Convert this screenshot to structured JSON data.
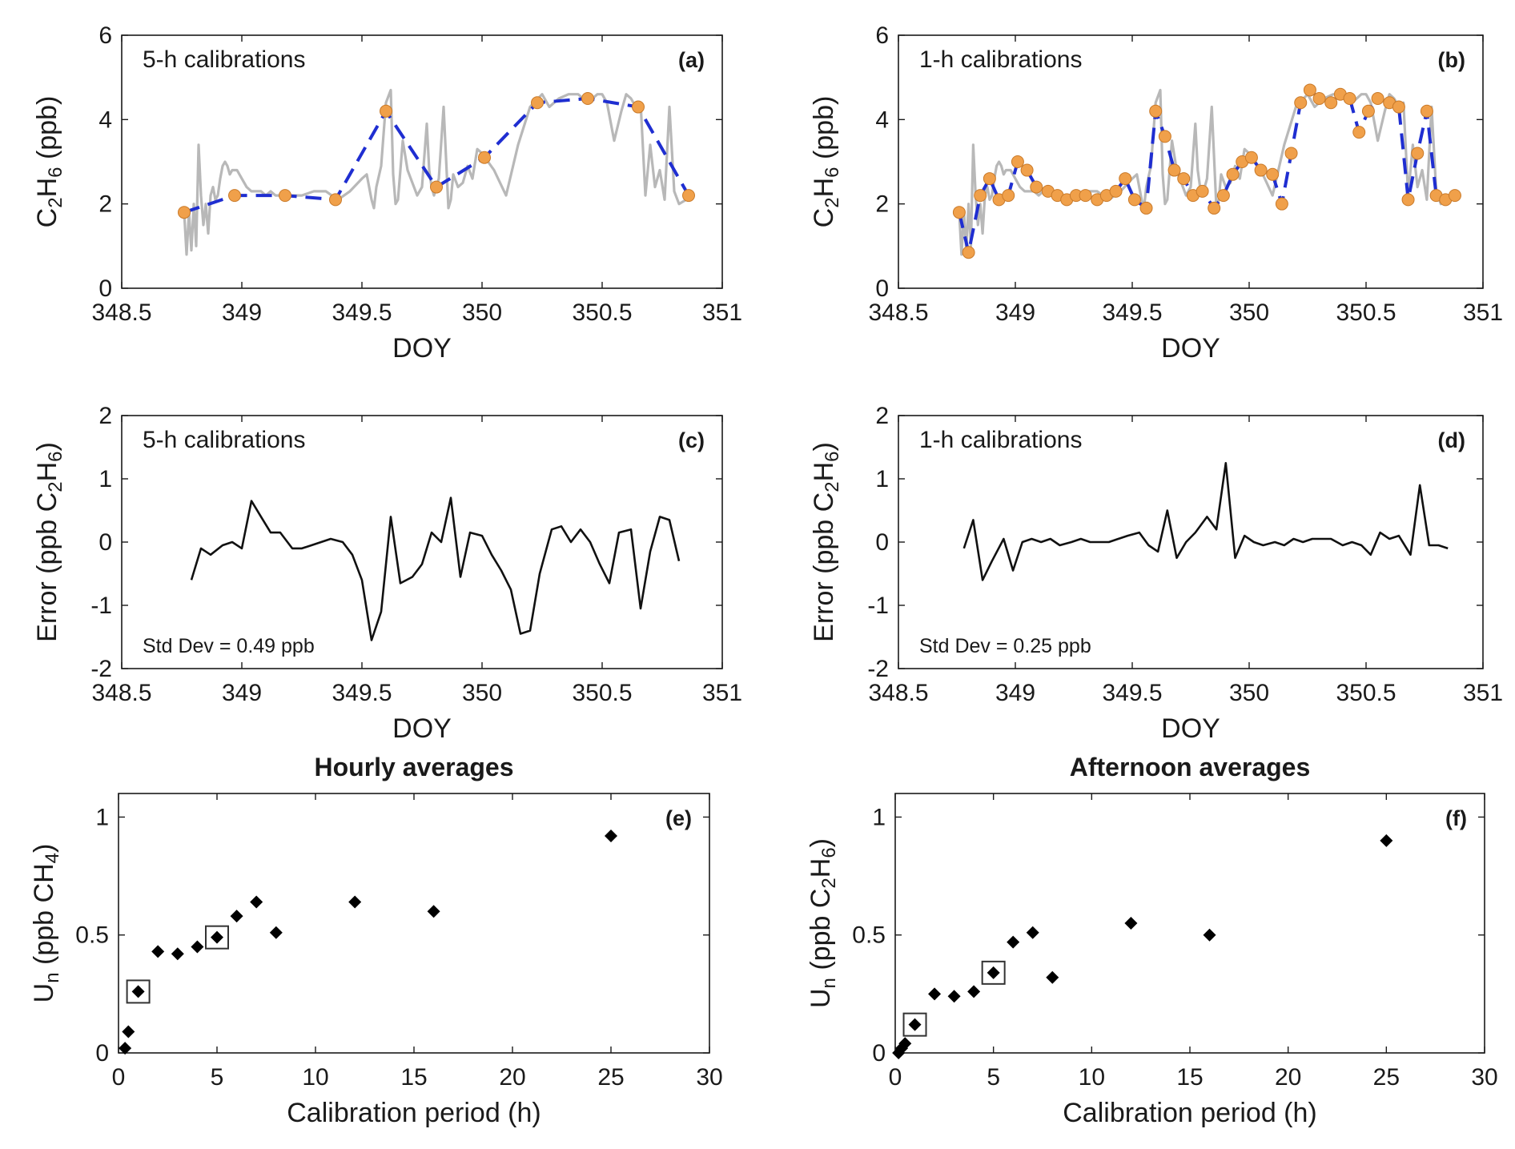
{
  "chart_data": [
    {
      "id": "a",
      "type": "line",
      "tag": "(a)",
      "note": "5-h calibrations",
      "xlabel": "DOY",
      "ylabel": [
        "C",
        "2",
        "H",
        "6",
        " (ppb)"
      ],
      "xlim": [
        348.5,
        351
      ],
      "ylim": [
        0,
        6
      ],
      "xticks": [
        348.5,
        349,
        349.5,
        350,
        350.5,
        351
      ],
      "xtick_labels": [
        "348.5",
        "349",
        "349.5",
        "350",
        "350.5",
        "351"
      ],
      "yticks": [
        0,
        2,
        4,
        6
      ],
      "ytick_labels": [
        "0",
        "2",
        "4",
        "6"
      ],
      "series": [
        {
          "style": "measured",
          "color": "#b8b8b8",
          "x": [
            348.76,
            348.77,
            348.78,
            348.79,
            348.8,
            348.81,
            348.82,
            348.83,
            348.84,
            348.85,
            348.86,
            348.87,
            348.88,
            348.89,
            348.9,
            348.91,
            348.92,
            348.93,
            348.94,
            348.95,
            348.96,
            348.98,
            349.0,
            349.02,
            349.04,
            349.06,
            349.08,
            349.1,
            349.12,
            349.14,
            349.16,
            349.2,
            349.25,
            349.3,
            349.35,
            349.4,
            349.45,
            349.5,
            349.52,
            349.54,
            349.55,
            349.56,
            349.58,
            349.6,
            349.62,
            349.63,
            349.64,
            349.65,
            349.67,
            349.69,
            349.71,
            349.73,
            349.75,
            349.77,
            349.78,
            349.79,
            349.8,
            349.81,
            349.82,
            349.84,
            349.86,
            349.87,
            349.88,
            349.9,
            349.92,
            349.94,
            349.96,
            349.98,
            350.0,
            350.05,
            350.1,
            350.15,
            350.2,
            350.25,
            350.28,
            350.32,
            350.36,
            350.4,
            350.44,
            350.48,
            350.5,
            350.52,
            350.55,
            350.58,
            350.6,
            350.62,
            350.64,
            350.66,
            350.68,
            350.7,
            350.72,
            350.74,
            350.76,
            350.78,
            350.8,
            350.82,
            350.85,
            350.88
          ],
          "y": [
            1.8,
            0.8,
            1.8,
            0.9,
            2.0,
            1.0,
            3.4,
            2.2,
            1.5,
            2.0,
            1.3,
            2.2,
            2.4,
            2.1,
            2.2,
            2.6,
            2.9,
            3.0,
            2.9,
            2.7,
            2.8,
            2.8,
            2.6,
            2.4,
            2.3,
            2.3,
            2.3,
            2.2,
            2.3,
            2.2,
            2.2,
            2.2,
            2.2,
            2.3,
            2.3,
            2.1,
            2.3,
            2.6,
            2.7,
            2.1,
            1.9,
            2.4,
            2.9,
            4.4,
            4.7,
            2.7,
            2.0,
            2.1,
            3.5,
            2.8,
            2.5,
            2.2,
            2.4,
            3.9,
            2.8,
            2.4,
            2.2,
            2.4,
            2.6,
            4.3,
            1.9,
            2.1,
            2.7,
            2.4,
            2.5,
            2.9,
            2.6,
            3.3,
            3.2,
            2.8,
            2.2,
            3.4,
            4.3,
            4.6,
            4.3,
            4.5,
            4.6,
            4.6,
            4.4,
            4.6,
            4.6,
            4.4,
            3.5,
            4.2,
            4.6,
            4.5,
            4.3,
            4.4,
            2.2,
            3.4,
            2.4,
            2.8,
            2.1,
            4.3,
            2.3,
            2.0,
            2.1,
            2.2
          ]
        },
        {
          "style": "calibrated",
          "color": "#1f2ed1",
          "marker_color": "#f0a04a",
          "x": [
            348.76,
            348.97,
            349.18,
            349.39,
            349.6,
            349.81,
            350.01,
            350.23,
            350.44,
            350.65,
            350.86
          ],
          "y": [
            1.8,
            2.2,
            2.2,
            2.1,
            4.2,
            2.4,
            3.1,
            4.4,
            4.5,
            4.3,
            2.2
          ]
        }
      ]
    },
    {
      "id": "b",
      "type": "line",
      "tag": "(b)",
      "note": "1-h calibrations",
      "xlabel": "DOY",
      "ylabel": [
        "C",
        "2",
        "H",
        "6",
        " (ppb)"
      ],
      "xlim": [
        348.5,
        351
      ],
      "ylim": [
        0,
        6
      ],
      "xticks": [
        348.5,
        349,
        349.5,
        350,
        350.5,
        351
      ],
      "xtick_labels": [
        "348.5",
        "349",
        "349.5",
        "350",
        "350.5",
        "351"
      ],
      "yticks": [
        0,
        2,
        4,
        6
      ],
      "ytick_labels": [
        "0",
        "2",
        "4",
        "6"
      ],
      "series": [
        {
          "style": "measured",
          "color": "#b8b8b8",
          "x": [
            348.76,
            348.77,
            348.78,
            348.79,
            348.8,
            348.81,
            348.82,
            348.83,
            348.84,
            348.85,
            348.86,
            348.87,
            348.88,
            348.89,
            348.9,
            348.91,
            348.92,
            348.93,
            348.94,
            348.95,
            348.96,
            348.98,
            349.0,
            349.02,
            349.04,
            349.06,
            349.08,
            349.1,
            349.12,
            349.14,
            349.16,
            349.2,
            349.25,
            349.3,
            349.35,
            349.4,
            349.45,
            349.5,
            349.52,
            349.54,
            349.55,
            349.56,
            349.58,
            349.6,
            349.62,
            349.63,
            349.64,
            349.65,
            349.67,
            349.69,
            349.71,
            349.73,
            349.75,
            349.77,
            349.78,
            349.79,
            349.8,
            349.81,
            349.82,
            349.84,
            349.86,
            349.87,
            349.88,
            349.9,
            349.92,
            349.94,
            349.96,
            349.98,
            350.0,
            350.05,
            350.1,
            350.15,
            350.2,
            350.25,
            350.28,
            350.32,
            350.36,
            350.4,
            350.44,
            350.48,
            350.5,
            350.52,
            350.55,
            350.58,
            350.6,
            350.62,
            350.64,
            350.66,
            350.68,
            350.7,
            350.72,
            350.74,
            350.76,
            350.78,
            350.8,
            350.82,
            350.85,
            350.88
          ],
          "y": [
            1.8,
            0.8,
            1.8,
            0.9,
            2.0,
            1.0,
            3.4,
            2.2,
            1.5,
            2.0,
            1.3,
            2.2,
            2.4,
            2.1,
            2.2,
            2.6,
            2.9,
            3.0,
            2.9,
            2.7,
            2.8,
            2.8,
            2.6,
            2.4,
            2.3,
            2.3,
            2.3,
            2.2,
            2.3,
            2.2,
            2.2,
            2.2,
            2.2,
            2.3,
            2.3,
            2.1,
            2.3,
            2.6,
            2.7,
            2.1,
            1.9,
            2.4,
            2.9,
            4.4,
            4.7,
            2.7,
            2.0,
            2.1,
            3.5,
            2.8,
            2.5,
            2.2,
            2.4,
            3.9,
            2.8,
            2.4,
            2.2,
            2.4,
            2.6,
            4.3,
            1.9,
            2.1,
            2.7,
            2.4,
            2.5,
            2.9,
            2.6,
            3.3,
            3.2,
            2.8,
            2.2,
            3.4,
            4.3,
            4.6,
            4.3,
            4.5,
            4.6,
            4.6,
            4.4,
            4.6,
            4.6,
            4.4,
            3.5,
            4.2,
            4.6,
            4.5,
            4.3,
            4.4,
            2.2,
            3.4,
            2.4,
            2.8,
            2.1,
            4.3,
            2.3,
            2.0,
            2.1,
            2.2
          ]
        },
        {
          "style": "calibrated",
          "color": "#1f2ed1",
          "marker_color": "#f0a04a",
          "x": [
            348.76,
            348.8,
            348.85,
            348.89,
            348.93,
            348.97,
            349.01,
            349.05,
            349.09,
            349.14,
            349.18,
            349.22,
            349.26,
            349.3,
            349.35,
            349.39,
            349.43,
            349.47,
            349.51,
            349.56,
            349.6,
            349.64,
            349.68,
            349.72,
            349.76,
            349.8,
            349.85,
            349.89,
            349.93,
            349.97,
            350.01,
            350.05,
            350.1,
            350.14,
            350.18,
            350.22,
            350.26,
            350.3,
            350.35,
            350.39,
            350.43,
            350.47,
            350.51,
            350.55,
            350.6,
            350.64,
            350.68,
            350.72,
            350.76,
            350.8,
            350.84,
            350.88
          ],
          "y": [
            1.8,
            0.85,
            2.2,
            2.6,
            2.1,
            2.2,
            3.0,
            2.8,
            2.4,
            2.3,
            2.2,
            2.1,
            2.2,
            2.2,
            2.1,
            2.2,
            2.3,
            2.6,
            2.1,
            1.9,
            4.2,
            3.6,
            2.8,
            2.6,
            2.2,
            2.3,
            1.9,
            2.2,
            2.7,
            3.0,
            3.1,
            2.8,
            2.7,
            2.0,
            3.2,
            4.4,
            4.7,
            4.5,
            4.4,
            4.6,
            4.5,
            3.7,
            4.2,
            4.5,
            4.4,
            4.3,
            2.1,
            3.2,
            4.2,
            2.2,
            2.1,
            2.2
          ]
        }
      ]
    },
    {
      "id": "c",
      "type": "line",
      "tag": "(c)",
      "note": "5-h calibrations",
      "std_note": "Std Dev = 0.49 ppb",
      "xlabel": "DOY",
      "ylabel": [
        "Error (ppb C",
        "2",
        "H",
        "6",
        ")"
      ],
      "xlim": [
        348.5,
        351
      ],
      "ylim": [
        -2,
        2
      ],
      "xticks": [
        348.5,
        349,
        349.5,
        350,
        350.5,
        351
      ],
      "xtick_labels": [
        "348.5",
        "349",
        "349.5",
        "350",
        "350.5",
        "351"
      ],
      "yticks": [
        -2,
        -1,
        0,
        1,
        2
      ],
      "ytick_labels": [
        "-2",
        "-1",
        "0",
        "1",
        "2"
      ],
      "series": [
        {
          "style": "error",
          "color": "#111111",
          "x": [
            348.79,
            348.83,
            348.87,
            348.92,
            348.96,
            349.0,
            349.04,
            349.08,
            349.12,
            349.16,
            349.21,
            349.25,
            349.29,
            349.33,
            349.37,
            349.42,
            349.46,
            349.5,
            349.54,
            349.58,
            349.62,
            349.66,
            349.71,
            349.75,
            349.79,
            349.83,
            349.87,
            349.91,
            349.95,
            350.0,
            350.04,
            350.08,
            350.12,
            350.16,
            350.2,
            350.24,
            350.29,
            350.33,
            350.37,
            350.41,
            350.45,
            350.49,
            350.53,
            350.57,
            350.62,
            350.66,
            350.7,
            350.74,
            350.78,
            350.82
          ],
          "y": [
            -0.6,
            -0.1,
            -0.2,
            -0.05,
            0.0,
            -0.1,
            0.65,
            0.4,
            0.15,
            0.15,
            -0.1,
            -0.1,
            -0.05,
            0.0,
            0.05,
            0.0,
            -0.2,
            -0.6,
            -1.55,
            -1.1,
            0.4,
            -0.65,
            -0.55,
            -0.35,
            0.15,
            0.0,
            0.7,
            -0.55,
            0.15,
            0.1,
            -0.2,
            -0.45,
            -0.75,
            -1.45,
            -1.4,
            -0.5,
            0.2,
            0.25,
            0.0,
            0.2,
            0.0,
            -0.35,
            -0.65,
            0.15,
            0.2,
            -1.05,
            -0.15,
            0.4,
            0.35,
            -0.3
          ]
        }
      ]
    },
    {
      "id": "d",
      "type": "line",
      "tag": "(d)",
      "note": "1-h calibrations",
      "std_note": "Std Dev = 0.25 ppb",
      "xlabel": "DOY",
      "ylabel": [
        "Error (ppb C",
        "2",
        "H",
        "6",
        ")"
      ],
      "xlim": [
        348.5,
        351
      ],
      "ylim": [
        -2,
        2
      ],
      "xticks": [
        348.5,
        349,
        349.5,
        350,
        350.5,
        351
      ],
      "xtick_labels": [
        "348.5",
        "349",
        "349.5",
        "350",
        "350.5",
        "351"
      ],
      "yticks": [
        -2,
        -1,
        0,
        1,
        2
      ],
      "ytick_labels": [
        "-2",
        "-1",
        "0",
        "1",
        "2"
      ],
      "series": [
        {
          "style": "error",
          "color": "#111111",
          "x": [
            348.78,
            348.82,
            348.86,
            348.9,
            348.95,
            348.99,
            349.03,
            349.07,
            349.11,
            349.15,
            349.19,
            349.24,
            349.28,
            349.32,
            349.36,
            349.4,
            349.44,
            349.48,
            349.53,
            349.57,
            349.61,
            349.65,
            349.69,
            349.73,
            349.77,
            349.82,
            349.86,
            349.9,
            349.94,
            349.98,
            350.02,
            350.06,
            350.11,
            350.15,
            350.19,
            350.23,
            350.27,
            350.31,
            350.35,
            350.4,
            350.44,
            350.48,
            350.52,
            350.56,
            350.6,
            350.64,
            350.69,
            350.73,
            350.77,
            350.81,
            350.85
          ],
          "y": [
            -0.1,
            0.35,
            -0.6,
            -0.3,
            0.05,
            -0.45,
            0.0,
            0.05,
            0.0,
            0.05,
            -0.05,
            0.0,
            0.05,
            0.0,
            0.0,
            0.0,
            0.05,
            0.1,
            0.15,
            -0.05,
            -0.15,
            0.5,
            -0.25,
            0.0,
            0.15,
            0.4,
            0.2,
            1.25,
            -0.25,
            0.1,
            0.0,
            -0.05,
            0.0,
            -0.05,
            0.05,
            0.0,
            0.05,
            0.05,
            0.05,
            -0.05,
            0.0,
            -0.05,
            -0.2,
            0.15,
            0.05,
            0.1,
            -0.2,
            0.9,
            -0.05,
            -0.05,
            -0.1
          ]
        }
      ]
    },
    {
      "id": "e",
      "type": "scatter",
      "title": "Hourly averages",
      "tag": "(e)",
      "xlabel": "Calibration period (h)",
      "ylabel": [
        "U",
        "n",
        " (ppb CH",
        "4",
        ")"
      ],
      "xlim": [
        0,
        30
      ],
      "ylim": [
        0,
        1.1
      ],
      "xticks": [
        0,
        5,
        10,
        15,
        20,
        25,
        30
      ],
      "xtick_labels": [
        "0",
        "5",
        "10",
        "15",
        "20",
        "25",
        "30"
      ],
      "yticks": [
        0,
        0.5,
        1
      ],
      "ytick_labels": [
        "0",
        "0.5",
        "1"
      ],
      "x": [
        0.33,
        0.5,
        1,
        2,
        3,
        4,
        5,
        6,
        7,
        8,
        12,
        16,
        25
      ],
      "y": [
        0.02,
        0.09,
        0.26,
        0.43,
        0.42,
        0.45,
        0.49,
        0.58,
        0.64,
        0.51,
        0.64,
        0.6,
        0.92
      ],
      "boxed_x": [
        1,
        5
      ],
      "marker_color": "#000000"
    },
    {
      "id": "f",
      "type": "scatter",
      "title": "Afternoon averages",
      "tag": "(f)",
      "xlabel": "Calibration period (h)",
      "ylabel": [
        "U",
        "n",
        " (ppb C",
        "2",
        "H",
        "6",
        ")"
      ],
      "xlim": [
        0,
        30
      ],
      "ylim": [
        0,
        1.1
      ],
      "xticks": [
        0,
        5,
        10,
        15,
        20,
        25,
        30
      ],
      "xtick_labels": [
        "0",
        "5",
        "10",
        "15",
        "20",
        "25",
        "30"
      ],
      "yticks": [
        0,
        0.5,
        1
      ],
      "ytick_labels": [
        "0",
        "0.5",
        "1"
      ],
      "x": [
        0.17,
        0.33,
        0.5,
        1,
        2,
        3,
        4,
        5,
        6,
        7,
        8,
        12,
        16,
        25
      ],
      "y": [
        0.0,
        0.02,
        0.04,
        0.12,
        0.25,
        0.24,
        0.26,
        0.34,
        0.47,
        0.51,
        0.32,
        0.55,
        0.5,
        0.9
      ],
      "boxed_x": [
        1,
        5
      ],
      "marker_color": "#000000"
    }
  ]
}
